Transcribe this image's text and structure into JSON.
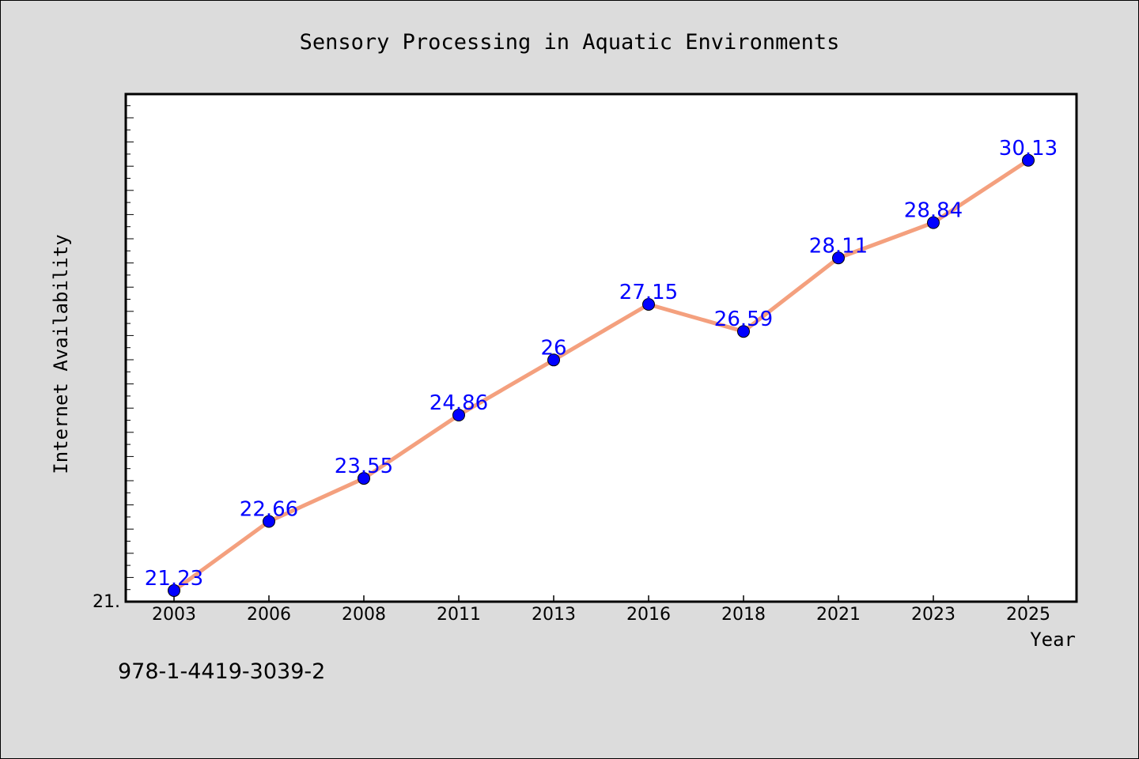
{
  "chart_data": {
    "type": "line",
    "title": "Sensory Processing in Aquatic Environments",
    "xlabel": "Year",
    "ylabel": "Internet Availability",
    "categories": [
      "2003",
      "2006",
      "2008",
      "2011",
      "2013",
      "2016",
      "2018",
      "2021",
      "2023",
      "2025"
    ],
    "series": [
      {
        "values": [
          21.23,
          22.66,
          23.55,
          24.86,
          26,
          27.15,
          26.59,
          28.11,
          28.84,
          30.13
        ],
        "data_labels": [
          "21.23",
          "22.66",
          "23.55",
          "24.86",
          "26",
          "27.15",
          "26.59",
          "28.11",
          "28.84",
          "30.13"
        ],
        "line_color": "#f4a07e",
        "marker_color": "#0000ff"
      }
    ],
    "ylim": [
      21,
      31.5
    ],
    "y_tick_label": "21.",
    "grid": false,
    "legend": "none"
  },
  "footer": {
    "isbn": "978-1-4419-3039-2"
  },
  "colors": {
    "background": "#dcdcdc",
    "plot_background": "#ffffff"
  }
}
